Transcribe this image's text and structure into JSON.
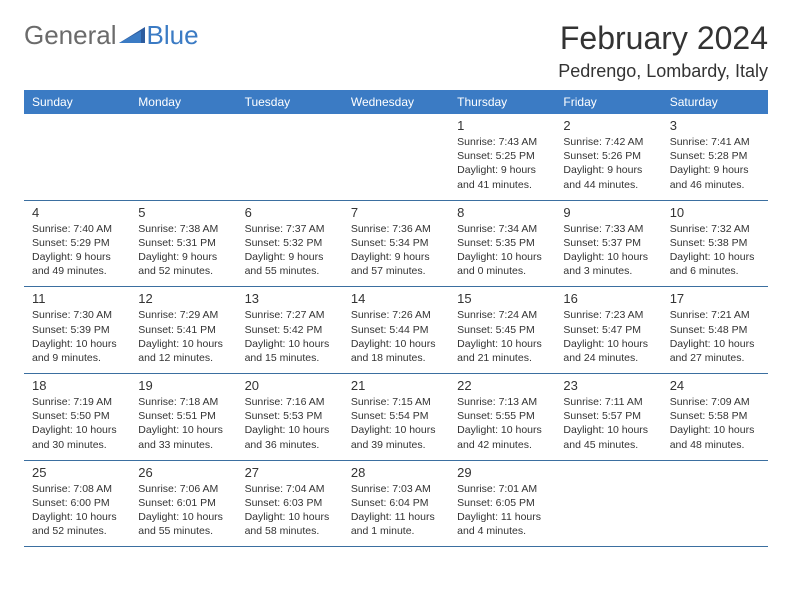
{
  "logo": {
    "general": "General",
    "blue": "Blue"
  },
  "title": "February 2024",
  "location": "Pedrengo, Lombardy, Italy",
  "dayHeaders": [
    "Sunday",
    "Monday",
    "Tuesday",
    "Wednesday",
    "Thursday",
    "Friday",
    "Saturday"
  ],
  "colors": {
    "header_bg": "#3b7bc4",
    "header_text": "#ffffff",
    "border": "#3b6fa0",
    "text": "#333333",
    "logo_gray": "#6b6b6b",
    "logo_blue": "#3b7bc4",
    "background": "#ffffff"
  },
  "weeks": [
    [
      null,
      null,
      null,
      null,
      {
        "num": "1",
        "sunrise": "Sunrise: 7:43 AM",
        "sunset": "Sunset: 5:25 PM",
        "daylight": "Daylight: 9 hours and 41 minutes."
      },
      {
        "num": "2",
        "sunrise": "Sunrise: 7:42 AM",
        "sunset": "Sunset: 5:26 PM",
        "daylight": "Daylight: 9 hours and 44 minutes."
      },
      {
        "num": "3",
        "sunrise": "Sunrise: 7:41 AM",
        "sunset": "Sunset: 5:28 PM",
        "daylight": "Daylight: 9 hours and 46 minutes."
      }
    ],
    [
      {
        "num": "4",
        "sunrise": "Sunrise: 7:40 AM",
        "sunset": "Sunset: 5:29 PM",
        "daylight": "Daylight: 9 hours and 49 minutes."
      },
      {
        "num": "5",
        "sunrise": "Sunrise: 7:38 AM",
        "sunset": "Sunset: 5:31 PM",
        "daylight": "Daylight: 9 hours and 52 minutes."
      },
      {
        "num": "6",
        "sunrise": "Sunrise: 7:37 AM",
        "sunset": "Sunset: 5:32 PM",
        "daylight": "Daylight: 9 hours and 55 minutes."
      },
      {
        "num": "7",
        "sunrise": "Sunrise: 7:36 AM",
        "sunset": "Sunset: 5:34 PM",
        "daylight": "Daylight: 9 hours and 57 minutes."
      },
      {
        "num": "8",
        "sunrise": "Sunrise: 7:34 AM",
        "sunset": "Sunset: 5:35 PM",
        "daylight": "Daylight: 10 hours and 0 minutes."
      },
      {
        "num": "9",
        "sunrise": "Sunrise: 7:33 AM",
        "sunset": "Sunset: 5:37 PM",
        "daylight": "Daylight: 10 hours and 3 minutes."
      },
      {
        "num": "10",
        "sunrise": "Sunrise: 7:32 AM",
        "sunset": "Sunset: 5:38 PM",
        "daylight": "Daylight: 10 hours and 6 minutes."
      }
    ],
    [
      {
        "num": "11",
        "sunrise": "Sunrise: 7:30 AM",
        "sunset": "Sunset: 5:39 PM",
        "daylight": "Daylight: 10 hours and 9 minutes."
      },
      {
        "num": "12",
        "sunrise": "Sunrise: 7:29 AM",
        "sunset": "Sunset: 5:41 PM",
        "daylight": "Daylight: 10 hours and 12 minutes."
      },
      {
        "num": "13",
        "sunrise": "Sunrise: 7:27 AM",
        "sunset": "Sunset: 5:42 PM",
        "daylight": "Daylight: 10 hours and 15 minutes."
      },
      {
        "num": "14",
        "sunrise": "Sunrise: 7:26 AM",
        "sunset": "Sunset: 5:44 PM",
        "daylight": "Daylight: 10 hours and 18 minutes."
      },
      {
        "num": "15",
        "sunrise": "Sunrise: 7:24 AM",
        "sunset": "Sunset: 5:45 PM",
        "daylight": "Daylight: 10 hours and 21 minutes."
      },
      {
        "num": "16",
        "sunrise": "Sunrise: 7:23 AM",
        "sunset": "Sunset: 5:47 PM",
        "daylight": "Daylight: 10 hours and 24 minutes."
      },
      {
        "num": "17",
        "sunrise": "Sunrise: 7:21 AM",
        "sunset": "Sunset: 5:48 PM",
        "daylight": "Daylight: 10 hours and 27 minutes."
      }
    ],
    [
      {
        "num": "18",
        "sunrise": "Sunrise: 7:19 AM",
        "sunset": "Sunset: 5:50 PM",
        "daylight": "Daylight: 10 hours and 30 minutes."
      },
      {
        "num": "19",
        "sunrise": "Sunrise: 7:18 AM",
        "sunset": "Sunset: 5:51 PM",
        "daylight": "Daylight: 10 hours and 33 minutes."
      },
      {
        "num": "20",
        "sunrise": "Sunrise: 7:16 AM",
        "sunset": "Sunset: 5:53 PM",
        "daylight": "Daylight: 10 hours and 36 minutes."
      },
      {
        "num": "21",
        "sunrise": "Sunrise: 7:15 AM",
        "sunset": "Sunset: 5:54 PM",
        "daylight": "Daylight: 10 hours and 39 minutes."
      },
      {
        "num": "22",
        "sunrise": "Sunrise: 7:13 AM",
        "sunset": "Sunset: 5:55 PM",
        "daylight": "Daylight: 10 hours and 42 minutes."
      },
      {
        "num": "23",
        "sunrise": "Sunrise: 7:11 AM",
        "sunset": "Sunset: 5:57 PM",
        "daylight": "Daylight: 10 hours and 45 minutes."
      },
      {
        "num": "24",
        "sunrise": "Sunrise: 7:09 AM",
        "sunset": "Sunset: 5:58 PM",
        "daylight": "Daylight: 10 hours and 48 minutes."
      }
    ],
    [
      {
        "num": "25",
        "sunrise": "Sunrise: 7:08 AM",
        "sunset": "Sunset: 6:00 PM",
        "daylight": "Daylight: 10 hours and 52 minutes."
      },
      {
        "num": "26",
        "sunrise": "Sunrise: 7:06 AM",
        "sunset": "Sunset: 6:01 PM",
        "daylight": "Daylight: 10 hours and 55 minutes."
      },
      {
        "num": "27",
        "sunrise": "Sunrise: 7:04 AM",
        "sunset": "Sunset: 6:03 PM",
        "daylight": "Daylight: 10 hours and 58 minutes."
      },
      {
        "num": "28",
        "sunrise": "Sunrise: 7:03 AM",
        "sunset": "Sunset: 6:04 PM",
        "daylight": "Daylight: 11 hours and 1 minute."
      },
      {
        "num": "29",
        "sunrise": "Sunrise: 7:01 AM",
        "sunset": "Sunset: 6:05 PM",
        "daylight": "Daylight: 11 hours and 4 minutes."
      },
      null,
      null
    ]
  ]
}
